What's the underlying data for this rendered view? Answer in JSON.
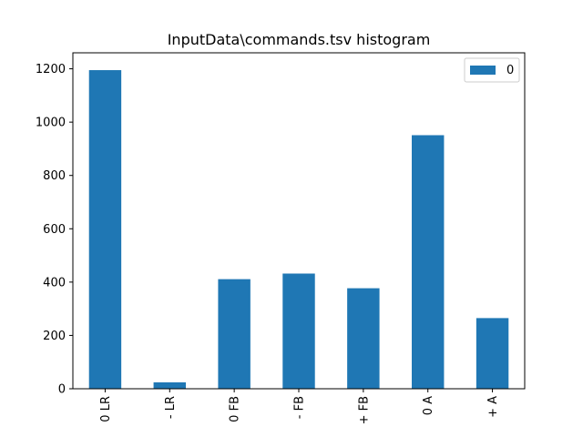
{
  "chart_data": {
    "type": "bar",
    "title": "InputData\\commands.tsv histogram",
    "xlabel": "",
    "ylabel": "",
    "categories": [
      "0 LR",
      "- LR",
      "0 FB",
      "- FB",
      "+ FB",
      "0 A",
      "+ A"
    ],
    "series": [
      {
        "name": "0",
        "values": [
          1195,
          24,
          411,
          432,
          377,
          951,
          265
        ],
        "color": "#1f77b4"
      }
    ],
    "ylim": [
      0,
      1260
    ],
    "yticks": [
      0,
      200,
      400,
      600,
      800,
      1000,
      1200
    ],
    "grid": false,
    "legend": {
      "placement": "top-right"
    }
  }
}
